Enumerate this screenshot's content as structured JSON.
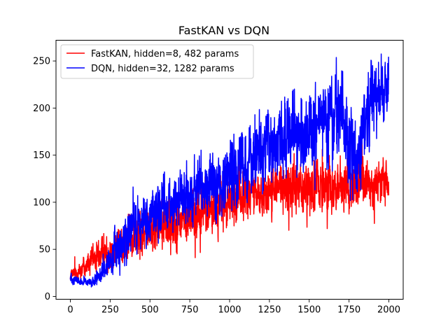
{
  "chart_data": {
    "type": "line",
    "title": "FastKAN vs DQN",
    "xlabel": "",
    "ylabel": "",
    "xlim": [
      -90,
      2090
    ],
    "ylim": [
      -3,
      272
    ],
    "xticks": [
      0,
      250,
      500,
      750,
      1000,
      1250,
      1500,
      1750,
      2000
    ],
    "yticks": [
      0,
      50,
      100,
      150,
      200,
      250
    ],
    "grid": false,
    "legend": "top-left",
    "n_points": 2000,
    "series": [
      {
        "name": "FastKAN, hidden=8, 482 params",
        "color": "#ff0000",
        "trend_x": [
          0,
          50,
          100,
          200,
          300,
          400,
          500,
          600,
          700,
          800,
          900,
          1000,
          1100,
          1200,
          1300,
          1400,
          1500,
          1600,
          1700,
          1800,
          1900,
          2000
        ],
        "trend_y": [
          22,
          27,
          34,
          45,
          54,
          63,
          70,
          76,
          81,
          87,
          93,
          100,
          106,
          110,
          113,
          116,
          118,
          119,
          120,
          119,
          120,
          122
        ],
        "noise": [
          3,
          5,
          7,
          9,
          11,
          12,
          12,
          13,
          13,
          13,
          13,
          13,
          13,
          13,
          13,
          14,
          14,
          14,
          14,
          13,
          13,
          13
        ],
        "min_y": 18,
        "max_y": 165
      },
      {
        "name": "DQN, hidden=32, 1282 params",
        "color": "#0000ff",
        "trend_x": [
          0,
          50,
          100,
          150,
          200,
          250,
          300,
          350,
          400,
          450,
          500,
          600,
          700,
          800,
          900,
          1000,
          1100,
          1200,
          1300,
          1400,
          1500,
          1600,
          1700,
          1750,
          1800,
          1850,
          1900,
          2000
        ],
        "trend_y": [
          20,
          16,
          14,
          15,
          24,
          38,
          52,
          62,
          72,
          82,
          90,
          97,
          103,
          110,
          118,
          128,
          138,
          152,
          162,
          172,
          180,
          188,
          192,
          170,
          140,
          185,
          215,
          225
        ],
        "noise": [
          3,
          2,
          2,
          3,
          6,
          9,
          11,
          13,
          15,
          16,
          15,
          14,
          14,
          15,
          16,
          17,
          18,
          19,
          19,
          20,
          20,
          21,
          24,
          28,
          22,
          22,
          20,
          15
        ],
        "min_y": 10,
        "max_y": 258
      }
    ]
  }
}
